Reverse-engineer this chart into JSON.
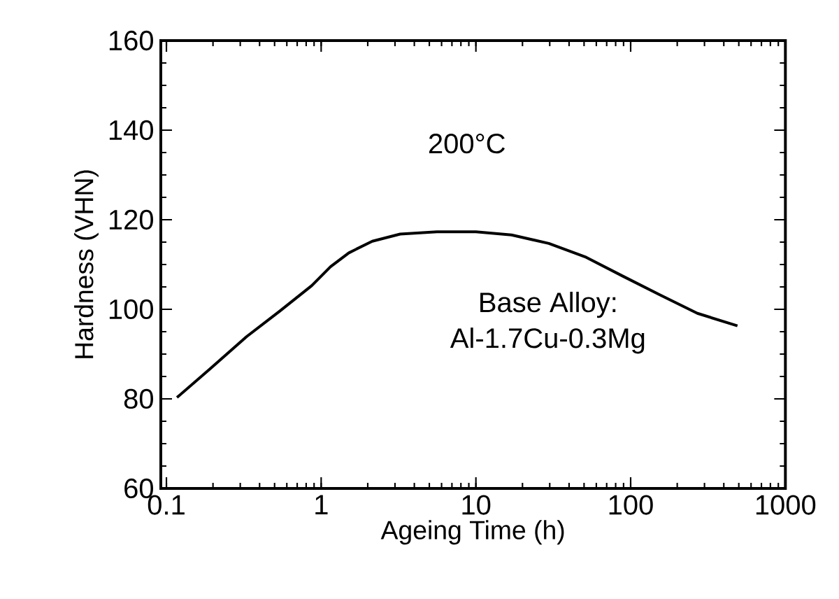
{
  "chart_data": {
    "type": "line",
    "xlabel": "Ageing Time (h)",
    "ylabel": "Hardness (VHN)",
    "log": "x",
    "xlim": [
      0.092,
      1000
    ],
    "ylim": [
      60,
      160
    ],
    "xticks": [
      0.1,
      1,
      10,
      100,
      1000
    ],
    "yticks": [
      60,
      80,
      100,
      120,
      140,
      160
    ],
    "marker": "none",
    "line_style": "solid",
    "annotations": [
      "200°C",
      "Base Alloy:",
      "Al-1.7Cu-0.3Mg"
    ],
    "series": [
      {
        "color": "#000000",
        "x": [
          0.117,
          0.19,
          0.33,
          0.54,
          0.87,
          1.15,
          1.51,
          2.14,
          3.24,
          5.6,
          10,
          17,
          29.6,
          51.6,
          89,
          155,
          270,
          490
        ],
        "values": [
          80.3,
          86.6,
          93.9,
          99.6,
          105.3,
          109.5,
          112.6,
          115.2,
          116.8,
          117.3,
          117.3,
          116.6,
          114.7,
          111.6,
          107.4,
          103.2,
          99.1,
          96.3
        ]
      }
    ]
  }
}
